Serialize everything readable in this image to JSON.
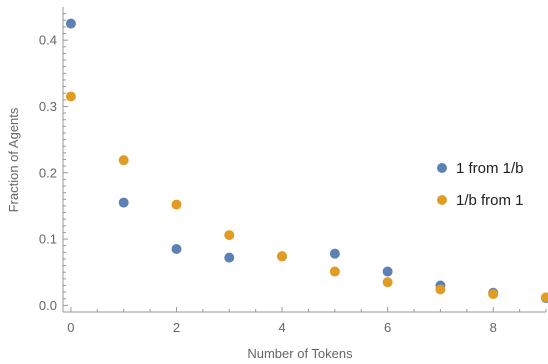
{
  "chart_data": {
    "type": "scatter",
    "xlabel": "Number of Tokens",
    "ylabel": "Fraction of Agents",
    "xlim": [
      -0.15,
      9.0
    ],
    "ylim": [
      -0.01,
      0.45
    ],
    "xticks": [
      0,
      2,
      4,
      6,
      8
    ],
    "yticks": [
      0.0,
      0.1,
      0.2,
      0.3,
      0.4
    ],
    "ytick_labels": [
      "0.0",
      "0.1",
      "0.2",
      "0.3",
      "0.4"
    ],
    "grid": false,
    "legend_position": "right",
    "series": [
      {
        "name": "1 from 1/b",
        "color": "#5e81b5",
        "x": [
          0,
          1,
          2,
          3,
          4,
          5,
          6,
          7,
          8,
          9
        ],
        "y": [
          0.425,
          0.155,
          0.085,
          0.072,
          0.074,
          0.078,
          0.051,
          0.03,
          0.019,
          0.011
        ]
      },
      {
        "name": "1/b from 1",
        "color": "#e19c24",
        "x": [
          0,
          1,
          2,
          3,
          4,
          5,
          6,
          7,
          8,
          9
        ],
        "y": [
          0.315,
          0.219,
          0.152,
          0.106,
          0.074,
          0.051,
          0.035,
          0.024,
          0.017,
          0.012
        ]
      }
    ]
  }
}
